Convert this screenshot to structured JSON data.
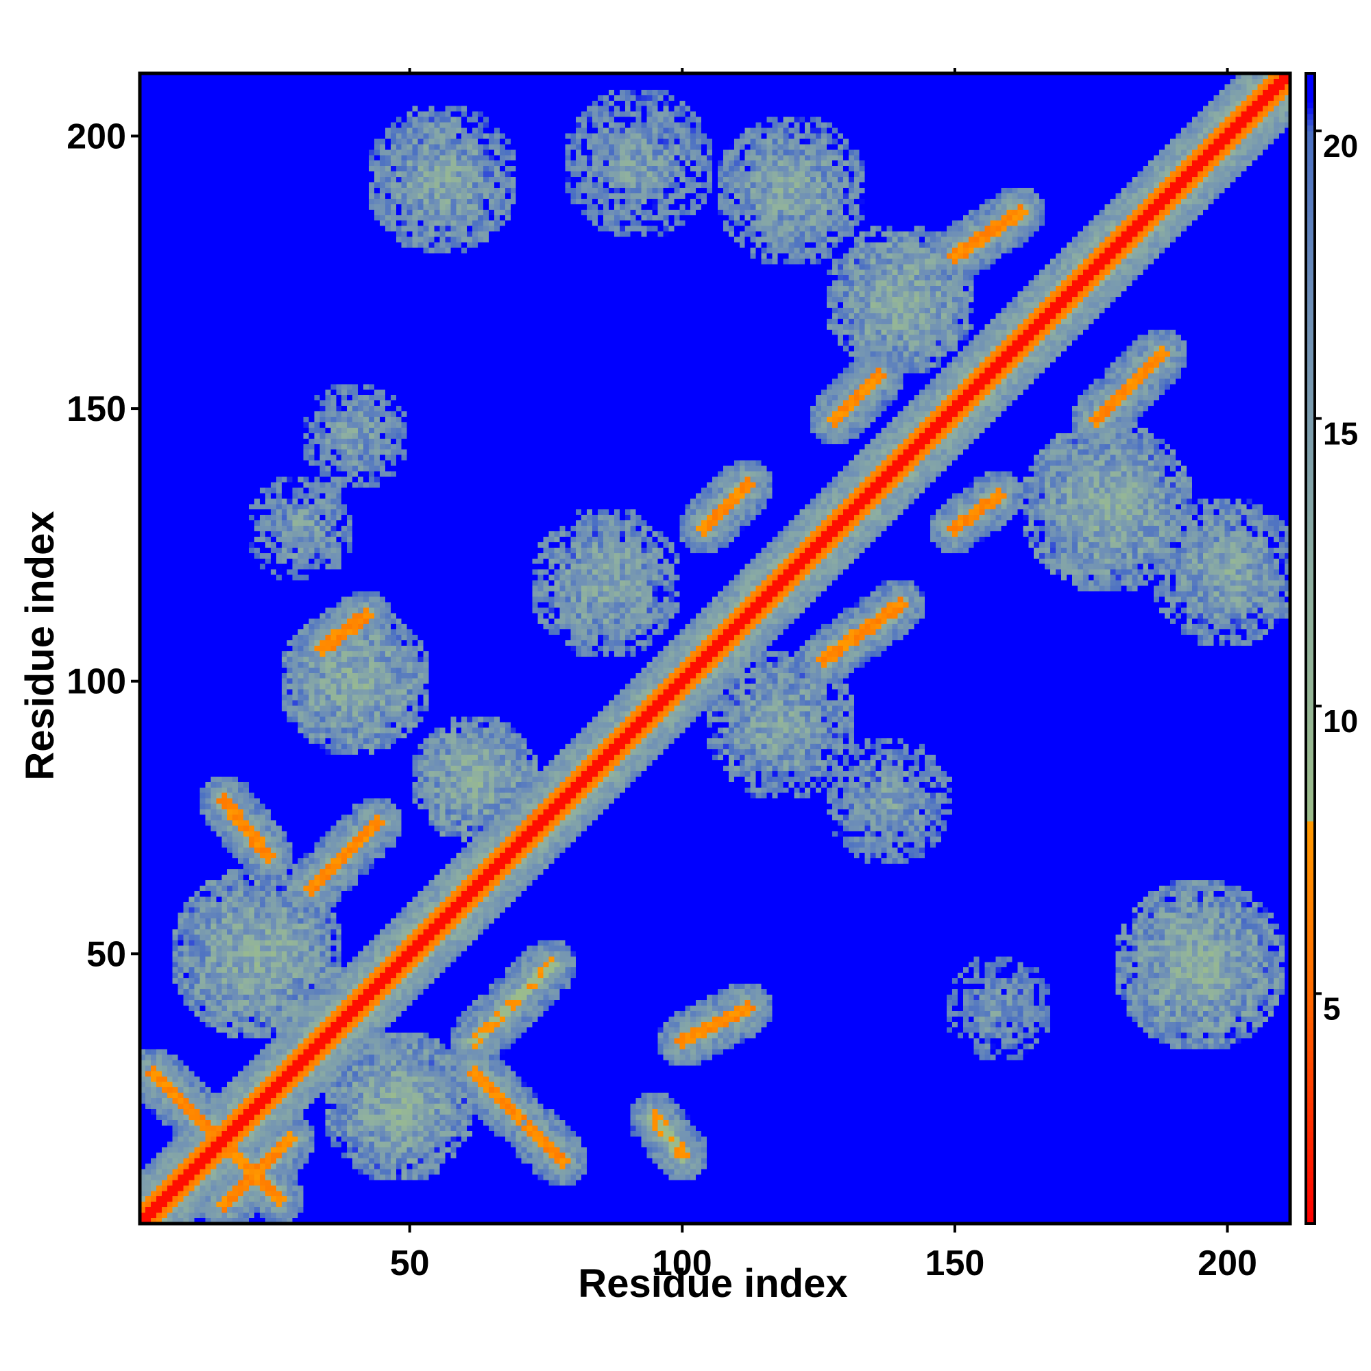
{
  "chart_data": {
    "type": "heatmap",
    "title": "",
    "xlabel": "Residue index",
    "ylabel": "Residue index",
    "n_residues": 211,
    "xlim": [
      1,
      211
    ],
    "ylim": [
      1,
      211
    ],
    "x_ticks": [
      50,
      100,
      150,
      200
    ],
    "y_ticks": [
      50,
      100,
      150,
      200
    ],
    "x_tick_labels": [
      "50",
      "100",
      "150",
      "200"
    ],
    "y_tick_labels": [
      "50",
      "100",
      "150",
      "200"
    ],
    "colorbar": {
      "range": [
        1,
        21
      ],
      "ticks": [
        5,
        10,
        15,
        20
      ],
      "tick_labels": [
        "5",
        "10",
        "15",
        "20"
      ],
      "colors": [
        {
          "value": 1,
          "color": "#ff0000"
        },
        {
          "value": 5,
          "color": "#ff6a00"
        },
        {
          "value": 8,
          "color": "#ff9900"
        },
        {
          "value": 8.01,
          "color": "#9cbd8a"
        },
        {
          "value": 12,
          "color": "#8fb0a0"
        },
        {
          "value": 17,
          "color": "#6e8fb7"
        },
        {
          "value": 20,
          "color": "#4a6fc4"
        },
        {
          "value": 20.5,
          "color": "#0000ff"
        }
      ]
    },
    "background_color": "#0000ff",
    "symmetric": false,
    "contact_regions": [
      {
        "kind": "diagonal",
        "from": [
          1,
          1
        ],
        "to": [
          211,
          211
        ],
        "value": 1.5
      },
      {
        "kind": "band",
        "from": [
          1,
          8
        ],
        "to": [
          211,
          218
        ],
        "value": 11
      },
      {
        "kind": "band",
        "from": [
          8,
          1
        ],
        "to": [
          211,
          204
        ],
        "value": 11
      },
      {
        "kind": "strand",
        "from": [
          3,
          28
        ],
        "to": [
          26,
          5
        ],
        "value": 6
      },
      {
        "kind": "strand",
        "from": [
          16,
          4
        ],
        "to": [
          28,
          16
        ],
        "value": 6
      },
      {
        "kind": "strand",
        "from": [
          62,
          28
        ],
        "to": [
          70,
          20
        ],
        "value": 6
      },
      {
        "kind": "strand",
        "from": [
          72,
          18
        ],
        "to": [
          78,
          12
        ],
        "value": 6
      },
      {
        "kind": "strand",
        "from": [
          100,
          34
        ],
        "to": [
          112,
          40
        ],
        "value": 6
      },
      {
        "kind": "strand",
        "from": [
          95,
          20
        ],
        "to": [
          100,
          13
        ],
        "value": 7
      },
      {
        "kind": "strand",
        "from": [
          32,
          62
        ],
        "to": [
          44,
          74
        ],
        "value": 6
      },
      {
        "kind": "strand",
        "from": [
          16,
          78
        ],
        "to": [
          24,
          68
        ],
        "value": 6
      },
      {
        "kind": "strand",
        "from": [
          34,
          106
        ],
        "to": [
          42,
          112
        ],
        "value": 6
      },
      {
        "kind": "strand",
        "from": [
          62,
          34
        ],
        "to": [
          76,
          48
        ],
        "value": 7
      },
      {
        "kind": "strand",
        "from": [
          70,
          70
        ],
        "to": [
          74,
          76
        ],
        "value": 5
      },
      {
        "kind": "strand",
        "from": [
          104,
          128
        ],
        "to": [
          112,
          136
        ],
        "value": 6
      },
      {
        "kind": "strand",
        "from": [
          126,
          104
        ],
        "to": [
          140,
          114
        ],
        "value": 6
      },
      {
        "kind": "strand",
        "from": [
          128,
          148
        ],
        "to": [
          136,
          156
        ],
        "value": 6
      },
      {
        "kind": "strand",
        "from": [
          150,
          128
        ],
        "to": [
          158,
          134
        ],
        "value": 6
      },
      {
        "kind": "strand",
        "from": [
          150,
          178
        ],
        "to": [
          162,
          186
        ],
        "value": 6
      },
      {
        "kind": "strand",
        "from": [
          176,
          148
        ],
        "to": [
          188,
          160
        ],
        "value": 6
      },
      {
        "kind": "patch",
        "center": [
          22,
          50
        ],
        "radius": 16,
        "value": 12
      },
      {
        "kind": "patch",
        "center": [
          48,
          22
        ],
        "radius": 14,
        "value": 12
      },
      {
        "kind": "patch",
        "center": [
          40,
          100
        ],
        "radius": 14,
        "value": 12
      },
      {
        "kind": "patch",
        "center": [
          62,
          82
        ],
        "radius": 12,
        "value": 12
      },
      {
        "kind": "patch",
        "center": [
          56,
          192
        ],
        "radius": 14,
        "value": 13
      },
      {
        "kind": "patch",
        "center": [
          40,
          145
        ],
        "radius": 10,
        "value": 14
      },
      {
        "kind": "patch",
        "center": [
          86,
          118
        ],
        "radius": 14,
        "value": 13
      },
      {
        "kind": "patch",
        "center": [
          118,
          92
        ],
        "radius": 14,
        "value": 13
      },
      {
        "kind": "patch",
        "center": [
          138,
          78
        ],
        "radius": 12,
        "value": 14
      },
      {
        "kind": "patch",
        "center": [
          120,
          190
        ],
        "radius": 14,
        "value": 13
      },
      {
        "kind": "patch",
        "center": [
          140,
          170
        ],
        "radius": 14,
        "value": 12
      },
      {
        "kind": "patch",
        "center": [
          178,
          132
        ],
        "radius": 16,
        "value": 12
      },
      {
        "kind": "patch",
        "center": [
          200,
          120
        ],
        "radius": 14,
        "value": 13
      },
      {
        "kind": "patch",
        "center": [
          195,
          48
        ],
        "radius": 16,
        "value": 12
      },
      {
        "kind": "patch",
        "center": [
          158,
          40
        ],
        "radius": 10,
        "value": 15
      },
      {
        "kind": "patch",
        "center": [
          30,
          128
        ],
        "radius": 10,
        "value": 14
      },
      {
        "kind": "patch",
        "center": [
          92,
          195
        ],
        "radius": 14,
        "value": 14
      }
    ]
  }
}
